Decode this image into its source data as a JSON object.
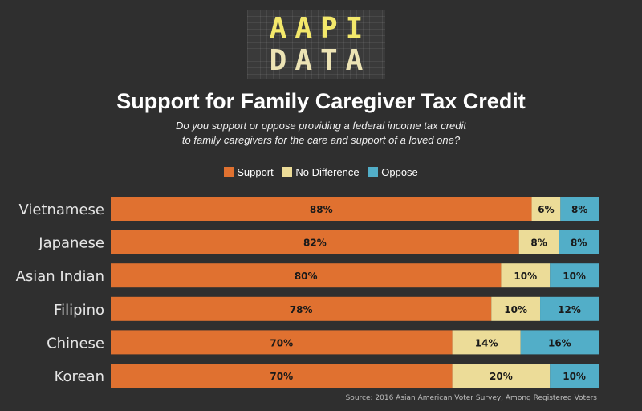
{
  "logo": {
    "line1": "AAPI",
    "line2": "DATA"
  },
  "chart_data": {
    "type": "bar",
    "orientation": "horizontal",
    "stacked": true,
    "title": "Support for Family Caregiver Tax Credit",
    "subtitle": [
      "Do you support or oppose providing a federal income tax credit",
      "to family caregivers for the care and support of a loved one?"
    ],
    "categories": [
      "Vietnamese",
      "Japanese",
      "Asian Indian",
      "Filipino",
      "Chinese",
      "Korean"
    ],
    "series": [
      {
        "name": "Support",
        "color": "#e07130",
        "values": [
          88,
          82,
          80,
          78,
          70,
          70
        ]
      },
      {
        "name": "No Difference",
        "color": "#ecdc98",
        "values": [
          6,
          8,
          10,
          10,
          14,
          20
        ]
      },
      {
        "name": "Oppose",
        "color": "#52aec8",
        "values": [
          8,
          8,
          10,
          12,
          16,
          10
        ]
      }
    ],
    "value_suffix": "%",
    "legend_position": "top-center",
    "grid": false,
    "source": "Source: 2016 Asian American Voter Survey, Among Registered Voters"
  }
}
